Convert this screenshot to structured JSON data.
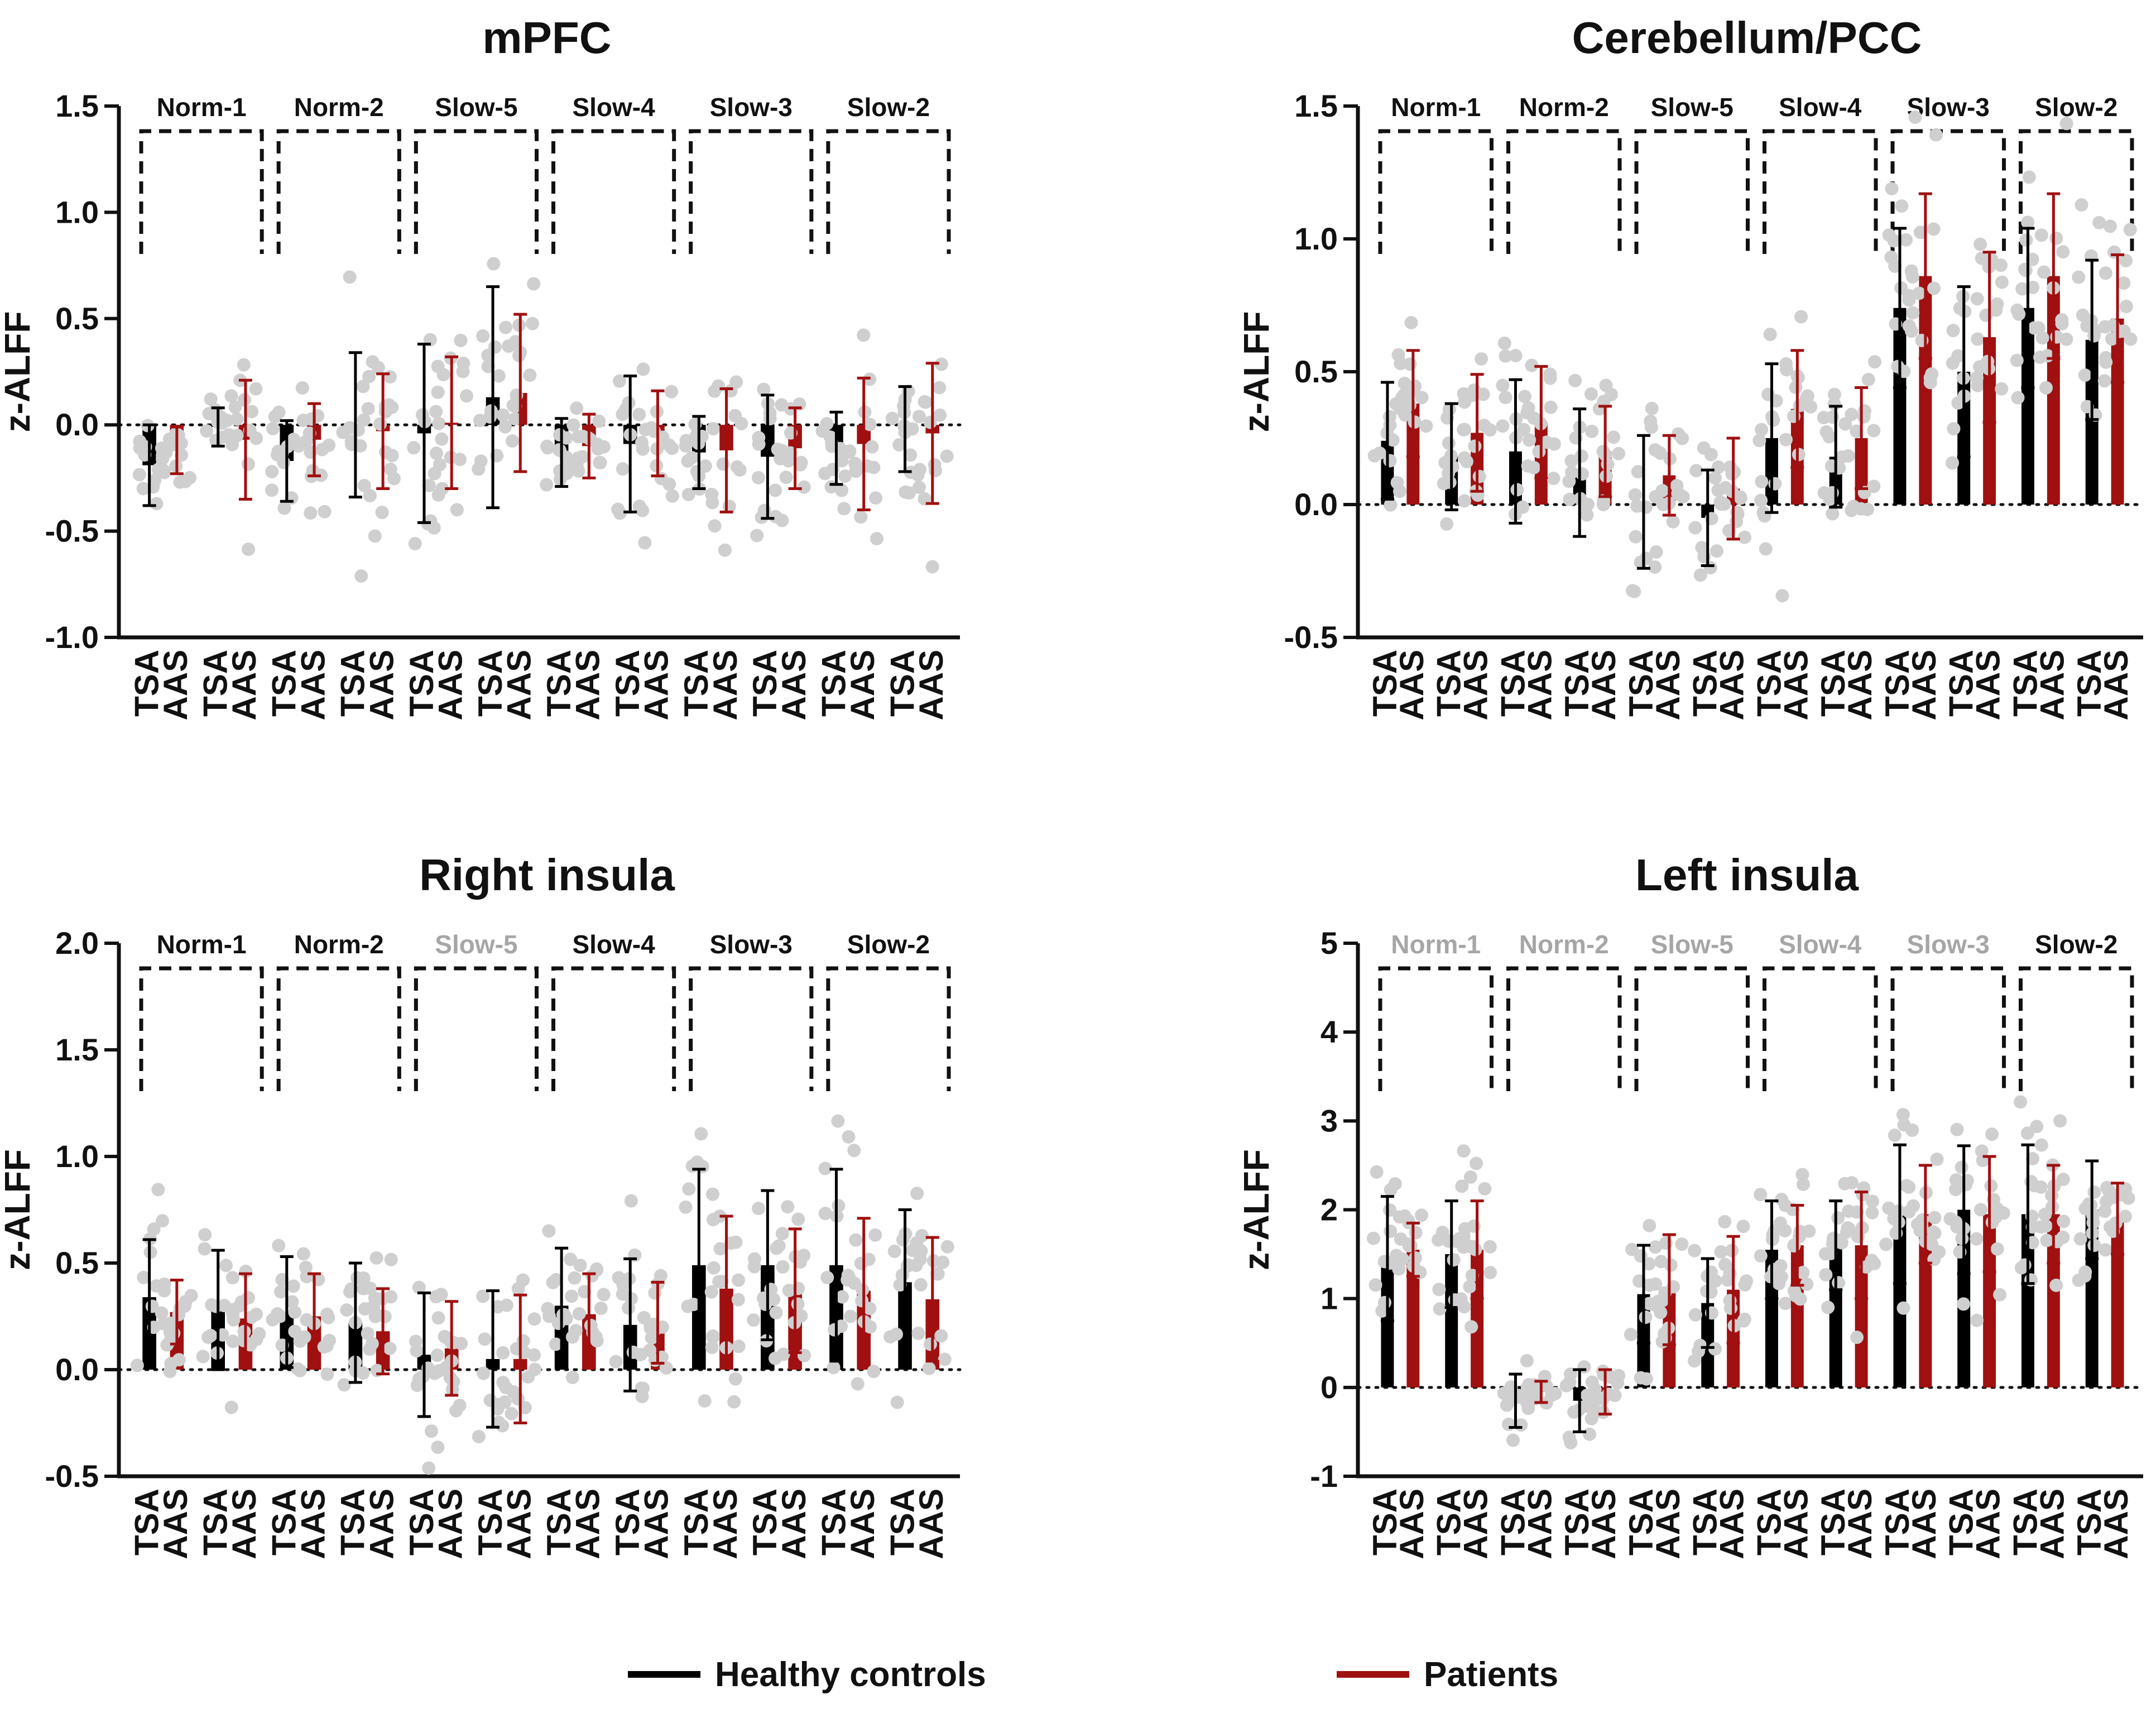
{
  "figure": {
    "legend": [
      {
        "label": "Healthy controls",
        "color": "#000000"
      },
      {
        "label": "Patients",
        "color": "#a01010"
      }
    ],
    "colors": {
      "controls": "#000000",
      "patients": "#a01010",
      "dots": "#cfcfcf",
      "muted_label": "#a6a6a6",
      "label": "#111111"
    }
  },
  "chart_data": [
    {
      "type": "bar",
      "title": "mPFC",
      "ylabel": "z-ALFF",
      "ylim": [
        -1.0,
        1.5
      ],
      "yticks": [
        "-1.0",
        "-0.5",
        "0.0",
        "0.5",
        "1.0",
        "1.5"
      ],
      "ytick_values": [
        -1.0,
        -0.5,
        0.0,
        0.5,
        1.0,
        1.5
      ],
      "xtick_labels": [
        "TSA",
        "AAS"
      ],
      "bands": [
        "Norm-1",
        "Norm-2",
        "Slow-5",
        "Slow-4",
        "Slow-3",
        "Slow-2"
      ],
      "band_muted": [
        false,
        false,
        false,
        false,
        false,
        false
      ],
      "series": [
        {
          "name": "Healthy controls",
          "values": [
            -0.19,
            -0.01,
            -0.17,
            0.0,
            -0.04,
            0.13,
            -0.13,
            -0.09,
            -0.13,
            -0.15,
            -0.11,
            -0.02
          ],
          "errors": [
            0.19,
            0.09,
            0.19,
            0.34,
            0.42,
            0.52,
            0.16,
            0.32,
            0.17,
            0.29,
            0.17,
            0.2
          ]
        },
        {
          "name": "Patients",
          "values": [
            -0.12,
            -0.07,
            -0.07,
            -0.03,
            0.01,
            0.15,
            -0.1,
            -0.04,
            -0.12,
            -0.11,
            -0.09,
            -0.04
          ],
          "errors": [
            0.11,
            0.28,
            0.17,
            0.27,
            0.31,
            0.37,
            0.15,
            0.2,
            0.29,
            0.19,
            0.31,
            0.33
          ]
        }
      ]
    },
    {
      "type": "bar",
      "title": "Cerebellum/PCC",
      "ylabel": "z-ALFF",
      "ylim": [
        -0.5,
        1.5
      ],
      "yticks": [
        "-0.5",
        "0.0",
        "0.5",
        "1.0",
        "1.5"
      ],
      "ytick_values": [
        -0.5,
        0.0,
        0.5,
        1.0,
        1.5
      ],
      "xtick_labels": [
        "TSA",
        "AAS"
      ],
      "bands": [
        "Norm-1",
        "Norm-2",
        "Slow-5",
        "Slow-4",
        "Slow-3",
        "Slow-2"
      ],
      "band_muted": [
        false,
        false,
        false,
        false,
        false,
        false
      ],
      "series": [
        {
          "name": "Healthy controls",
          "values": [
            0.24,
            0.18,
            0.2,
            0.12,
            0.01,
            -0.05,
            0.25,
            0.18,
            0.74,
            0.5,
            0.74,
            0.62
          ],
          "errors": [
            0.22,
            0.2,
            0.27,
            0.24,
            0.25,
            0.18,
            0.28,
            0.19,
            0.3,
            0.32,
            0.3,
            0.3
          ]
        },
        {
          "name": "Patients",
          "values": [
            0.38,
            0.27,
            0.31,
            0.2,
            0.11,
            0.06,
            0.36,
            0.25,
            0.86,
            0.63,
            0.86,
            0.7
          ],
          "errors": [
            0.2,
            0.22,
            0.21,
            0.17,
            0.15,
            0.19,
            0.22,
            0.19,
            0.31,
            0.32,
            0.31,
            0.24
          ]
        }
      ]
    },
    {
      "type": "bar",
      "title": "Right insula",
      "ylabel": "z-ALFF",
      "ylim": [
        -0.5,
        2.0
      ],
      "yticks": [
        "-0.5",
        "0.0",
        "0.5",
        "1.0",
        "1.5",
        "2.0"
      ],
      "ytick_values": [
        -0.5,
        0.0,
        0.5,
        1.0,
        1.5,
        2.0
      ],
      "xtick_labels": [
        "TSA",
        "AAS"
      ],
      "bands": [
        "Norm-1",
        "Norm-2",
        "Slow-5",
        "Slow-4",
        "Slow-3",
        "Slow-2"
      ],
      "band_muted": [
        false,
        false,
        true,
        false,
        false,
        false
      ],
      "series": [
        {
          "name": "Healthy controls",
          "values": [
            0.34,
            0.28,
            0.27,
            0.22,
            0.07,
            0.05,
            0.3,
            0.21,
            0.49,
            0.49,
            0.49,
            0.41
          ],
          "errors": [
            0.27,
            0.28,
            0.26,
            0.28,
            0.29,
            0.32,
            0.27,
            0.31,
            0.45,
            0.35,
            0.45,
            0.34
          ]
        },
        {
          "name": "Patients",
          "values": [
            0.27,
            0.24,
            0.25,
            0.18,
            0.1,
            0.05,
            0.26,
            0.22,
            0.38,
            0.37,
            0.37,
            0.33
          ],
          "errors": [
            0.15,
            0.21,
            0.2,
            0.2,
            0.22,
            0.3,
            0.19,
            0.19,
            0.34,
            0.29,
            0.34,
            0.29
          ]
        }
      ]
    },
    {
      "type": "bar",
      "title": "Left insula",
      "ylabel": "z-ALFF",
      "ylim": [
        -1,
        5
      ],
      "yticks": [
        "-1",
        "0",
        "1",
        "2",
        "3",
        "4",
        "5"
      ],
      "ytick_values": [
        -1,
        0,
        1,
        2,
        3,
        4,
        5
      ],
      "xtick_labels": [
        "TSA",
        "AAS"
      ],
      "bands": [
        "Norm-1",
        "Norm-2",
        "Slow-5",
        "Slow-4",
        "Slow-3",
        "Slow-2"
      ],
      "band_muted": [
        true,
        true,
        true,
        true,
        true,
        false
      ],
      "series": [
        {
          "name": "Healthy controls",
          "values": [
            1.45,
            1.5,
            -0.15,
            -0.15,
            1.05,
            0.95,
            1.55,
            1.6,
            1.95,
            2.0,
            1.95,
            2.0
          ],
          "errors": [
            0.7,
            0.6,
            0.3,
            0.35,
            0.55,
            0.5,
            0.55,
            0.5,
            0.78,
            0.72,
            0.78,
            0.55
          ]
        },
        {
          "name": "Patients",
          "values": [
            1.55,
            1.55,
            -0.05,
            -0.05,
            1.1,
            1.1,
            1.6,
            1.6,
            1.95,
            1.95,
            1.95,
            1.9
          ],
          "errors": [
            0.3,
            0.55,
            0.12,
            0.25,
            0.62,
            0.6,
            0.45,
            0.6,
            0.55,
            0.65,
            0.55,
            0.4
          ]
        }
      ]
    }
  ]
}
